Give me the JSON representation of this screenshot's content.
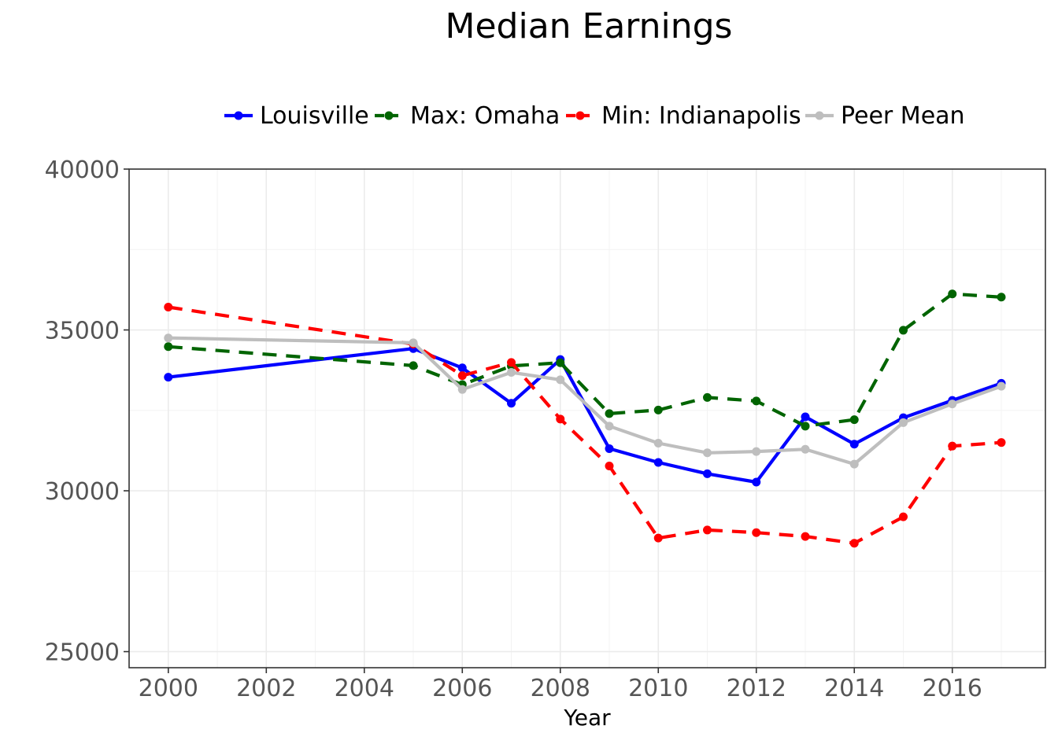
{
  "chart_data": {
    "type": "line",
    "title": "Median Earnings",
    "xlabel": "Year",
    "ylabel": "",
    "xlim": [
      1999.2,
      2017.9
    ],
    "ylim": [
      24500,
      40000
    ],
    "xticks": [
      2000,
      2002,
      2004,
      2006,
      2008,
      2010,
      2012,
      2014,
      2016
    ],
    "yticks": [
      25000,
      30000,
      35000,
      40000
    ],
    "grid": true,
    "legend_position": "top",
    "series": [
      {
        "name": "Louisville",
        "color": "#0000ff",
        "dash": "solid",
        "x": [
          2000,
          2005,
          2006,
          2007,
          2008,
          2009,
          2010,
          2011,
          2012,
          2013,
          2014,
          2015,
          2016,
          2017
        ],
        "y": [
          33530,
          34420,
          33820,
          32720,
          34080,
          31310,
          30880,
          30530,
          30270,
          32300,
          31450,
          32270,
          32810,
          33340
        ]
      },
      {
        "name": "Max: Omaha",
        "color": "#006400",
        "dash": "dashed",
        "x": [
          2000,
          2005,
          2006,
          2007,
          2008,
          2009,
          2010,
          2011,
          2012,
          2013,
          2014,
          2015,
          2016,
          2017
        ],
        "y": [
          34480,
          33890,
          33300,
          33880,
          33980,
          32400,
          32510,
          32900,
          32790,
          32010,
          32210,
          34990,
          36120,
          36020
        ]
      },
      {
        "name": "Min: Indianapolis",
        "color": "#ff0000",
        "dash": "dashed",
        "x": [
          2000,
          2005,
          2006,
          2007,
          2008,
          2009,
          2010,
          2011,
          2012,
          2013,
          2014,
          2015,
          2016,
          2017
        ],
        "y": [
          35710,
          34560,
          33580,
          33990,
          32230,
          30770,
          28530,
          28780,
          28700,
          28580,
          28370,
          29190,
          31390,
          31500
        ]
      },
      {
        "name": "Peer Mean",
        "color": "#bebebe",
        "dash": "solid",
        "x": [
          2000,
          2005,
          2006,
          2007,
          2008,
          2009,
          2010,
          2011,
          2012,
          2013,
          2014,
          2015,
          2016,
          2017
        ],
        "y": [
          34750,
          34600,
          33150,
          33680,
          33450,
          32010,
          31480,
          31180,
          31220,
          31290,
          30830,
          32120,
          32700,
          33250
        ]
      }
    ]
  }
}
